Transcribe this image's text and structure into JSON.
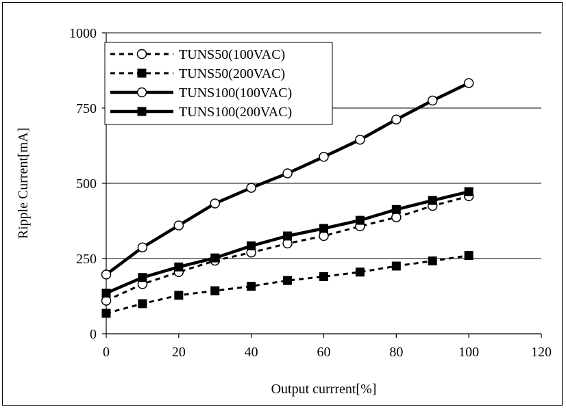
{
  "chart_data": {
    "type": "line",
    "title": "",
    "xlabel": "Output currrent[%]",
    "ylabel": "Ripple Current[mA]",
    "xlim": [
      0,
      120
    ],
    "ylim": [
      0,
      1000
    ],
    "x_ticks": [
      "0",
      "20",
      "40",
      "60",
      "80",
      "100",
      "120"
    ],
    "y_ticks": [
      "0",
      "250",
      "500",
      "750",
      "1000"
    ],
    "y_tick_values": [
      0,
      250,
      500,
      750,
      1000
    ],
    "x_tick_values": [
      0,
      20,
      40,
      60,
      80,
      100,
      120
    ],
    "grid": "horizontal",
    "legend_position": "top-left",
    "x": [
      0,
      10,
      20,
      30,
      40,
      50,
      60,
      70,
      80,
      90,
      100
    ],
    "series": [
      {
        "name": "TUNS50(100VAC)",
        "line": "dashed",
        "marker": "circle-open",
        "values": [
          110,
          165,
          205,
          243,
          270,
          300,
          325,
          357,
          387,
          425,
          457
        ]
      },
      {
        "name": "TUNS50(200VAC)",
        "line": "dashed",
        "marker": "square-filled",
        "values": [
          68,
          100,
          128,
          143,
          158,
          177,
          190,
          205,
          225,
          242,
          260
        ]
      },
      {
        "name": "TUNS100(100VAC)",
        "line": "solid",
        "marker": "circle-open",
        "values": [
          197,
          287,
          360,
          433,
          485,
          533,
          588,
          645,
          712,
          775,
          833
        ]
      },
      {
        "name": "TUNS100(200VAC)",
        "line": "solid",
        "marker": "square-filled",
        "values": [
          135,
          187,
          222,
          252,
          292,
          325,
          350,
          377,
          413,
          443,
          472
        ]
      }
    ],
    "colors": {
      "line": "#000000",
      "background": "#ffffff",
      "grid": "#000000"
    }
  }
}
